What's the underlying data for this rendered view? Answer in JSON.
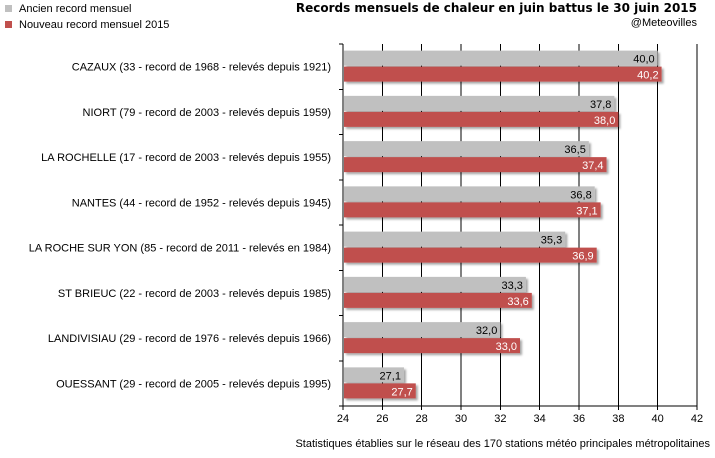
{
  "chart_data": {
    "type": "bar",
    "orientation": "horizontal",
    "title": "Records mensuels de chaleur en juin battus le 30 juin 2015",
    "subtitle": "@Meteovilles",
    "footer": "Statistiques établies sur le réseau des 170 stations météo principales métropolitaines",
    "categories": [
      "CAZAUX (33 - record de 1968 - relevés depuis 1921)",
      "NIORT (79 - record de 2003 - relevés depuis 1959)",
      "LA ROCHELLE (17 - record de 2003 - relevés depuis 1955)",
      "NANTES (44 - record de 1952 - relevés depuis 1945)",
      "LA ROCHE SUR YON (85 - record de 2011 - relevés en 1984)",
      "ST BRIEUC (22 - record de 2003 - relevés depuis 1985)",
      "LANDIVISIAU (29 - record de 1976 - relevés depuis 1966)",
      "OUESSANT (29 - record de 2005 - relevés depuis 1995)"
    ],
    "series": [
      {
        "name": "Ancien record mensuel",
        "color": "#c0c0c0",
        "values": [
          40.0,
          37.8,
          36.5,
          36.8,
          35.3,
          33.3,
          32.0,
          27.1
        ],
        "labels": [
          "40,0",
          "37,8",
          "36,5",
          "36,8",
          "35,3",
          "33,3",
          "32,0",
          "27,1"
        ]
      },
      {
        "name": "Nouveau record mensuel 2015",
        "color": "#c0504d",
        "values": [
          40.2,
          38.0,
          37.4,
          37.1,
          36.9,
          33.6,
          33.0,
          27.7
        ],
        "labels": [
          "40,2",
          "38,0",
          "37,4",
          "37,1",
          "36,9",
          "33,6",
          "33,0",
          "27,7"
        ]
      }
    ],
    "xlim": [
      24,
      42
    ],
    "ticks": [
      24,
      26,
      28,
      30,
      32,
      34,
      36,
      38,
      40,
      42
    ],
    "grid": true,
    "legend_position": "top-left"
  }
}
